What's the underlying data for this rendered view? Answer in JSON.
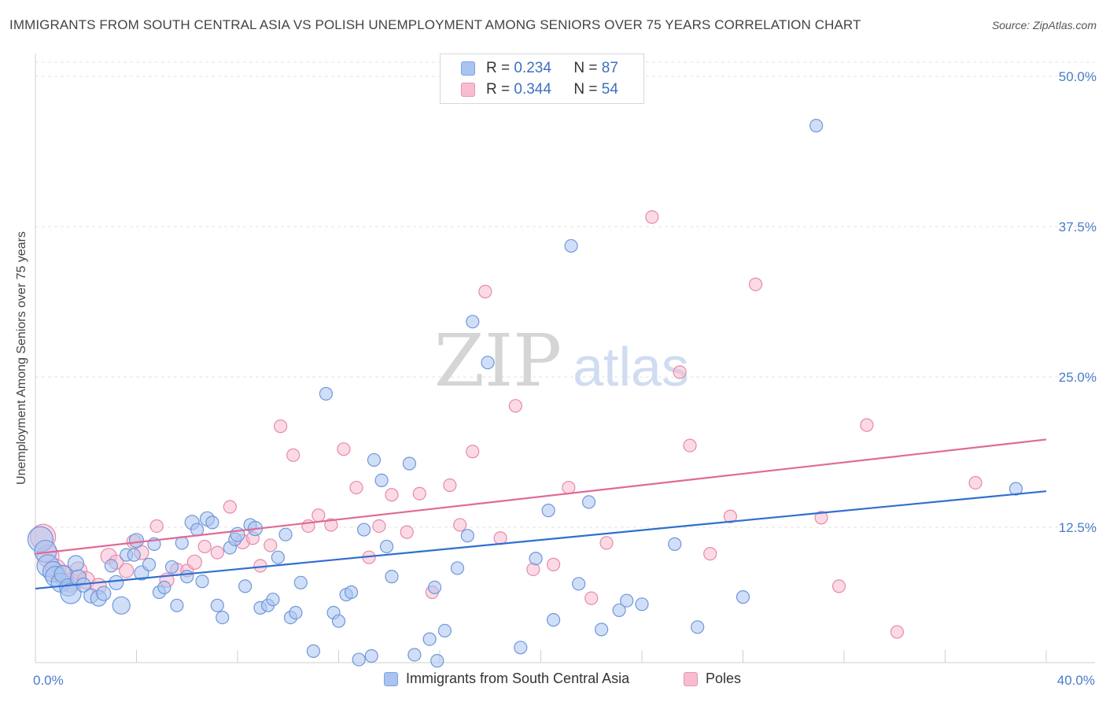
{
  "header": {
    "title": "IMMIGRANTS FROM SOUTH CENTRAL ASIA VS POLISH UNEMPLOYMENT AMONG SENIORS OVER 75 YEARS CORRELATION CHART",
    "source": "Source: ZipAtlas.com"
  },
  "watermark": {
    "zip": "ZIP",
    "atlas": "atlas"
  },
  "legend": {
    "r_label": "R =",
    "n_label": "N =",
    "entries": [
      {
        "r": "0.234",
        "n": "87",
        "color": "#a9c4f0",
        "border": "#7ea3e0"
      },
      {
        "r": "0.344",
        "n": "54",
        "color": "#f7bcd0",
        "border": "#e993b0"
      }
    ]
  },
  "colors": {
    "blue_fill": "#a9c4f0",
    "blue_stroke": "#6f97da",
    "blue_line": "#2f6fd0",
    "pink_fill": "#f7bcd0",
    "pink_stroke": "#e58aab",
    "pink_line": "#e06a96",
    "tick_text": "#4a7cc9"
  },
  "chart_data": {
    "type": "scatter",
    "xlabel": "",
    "ylabel": "Unemployment Among Seniors over 75 years",
    "xlim": [
      0,
      40
    ],
    "ylim": [
      0,
      50
    ],
    "x_tick_labels": [
      {
        "value": 0,
        "label": "0.0%"
      },
      {
        "value": 40,
        "label": "40.0%"
      }
    ],
    "y_tick_labels": [
      {
        "value": 12.5,
        "label": "12.5%"
      },
      {
        "value": 25,
        "label": "25.0%"
      },
      {
        "value": 37.5,
        "label": "37.5%"
      },
      {
        "value": 50,
        "label": "50.0%"
      }
    ],
    "grid": true,
    "legend_position": "top-center",
    "series": [
      {
        "name": "Immigrants from South Central Asia",
        "r": 0.234,
        "n": 87,
        "trend": {
          "x": [
            0,
            40
          ],
          "y": [
            7.4,
            15.5
          ]
        },
        "points": [
          {
            "x": 0.2,
            "y": 11.5,
            "s": 16
          },
          {
            "x": 0.4,
            "y": 10.5,
            "s": 14
          },
          {
            "x": 0.5,
            "y": 9.3,
            "s": 14
          },
          {
            "x": 0.7,
            "y": 8.8,
            "s": 13
          },
          {
            "x": 0.8,
            "y": 8.4,
            "s": 13
          },
          {
            "x": 1.0,
            "y": 7.9,
            "s": 12
          },
          {
            "x": 1.1,
            "y": 8.6,
            "s": 11
          },
          {
            "x": 1.3,
            "y": 7.5,
            "s": 11
          },
          {
            "x": 1.4,
            "y": 7.0,
            "s": 13
          },
          {
            "x": 1.6,
            "y": 9.5,
            "s": 10
          },
          {
            "x": 1.7,
            "y": 8.3,
            "s": 10
          },
          {
            "x": 1.9,
            "y": 7.7,
            "s": 9
          },
          {
            "x": 2.2,
            "y": 6.8,
            "s": 9
          },
          {
            "x": 2.5,
            "y": 6.6,
            "s": 10
          },
          {
            "x": 2.7,
            "y": 7.0,
            "s": 9
          },
          {
            "x": 3.0,
            "y": 9.3,
            "s": 8
          },
          {
            "x": 3.2,
            "y": 7.9,
            "s": 9
          },
          {
            "x": 3.4,
            "y": 6.0,
            "s": 11
          },
          {
            "x": 3.6,
            "y": 10.2,
            "s": 8
          },
          {
            "x": 3.9,
            "y": 10.2,
            "s": 8
          },
          {
            "x": 4.0,
            "y": 11.4,
            "s": 9
          },
          {
            "x": 4.2,
            "y": 8.7,
            "s": 9
          },
          {
            "x": 4.5,
            "y": 9.4,
            "s": 8
          },
          {
            "x": 4.7,
            "y": 11.1,
            "s": 8
          },
          {
            "x": 4.9,
            "y": 7.1,
            "s": 8
          },
          {
            "x": 5.1,
            "y": 7.5,
            "s": 8
          },
          {
            "x": 5.4,
            "y": 9.2,
            "s": 8
          },
          {
            "x": 5.6,
            "y": 6.0,
            "s": 8
          },
          {
            "x": 5.8,
            "y": 11.2,
            "s": 8
          },
          {
            "x": 6.0,
            "y": 8.4,
            "s": 8
          },
          {
            "x": 6.2,
            "y": 12.9,
            "s": 9
          },
          {
            "x": 6.4,
            "y": 12.3,
            "s": 8
          },
          {
            "x": 6.6,
            "y": 8.0,
            "s": 8
          },
          {
            "x": 6.8,
            "y": 13.2,
            "s": 9
          },
          {
            "x": 7.0,
            "y": 12.9,
            "s": 8
          },
          {
            "x": 7.2,
            "y": 6.0,
            "s": 8
          },
          {
            "x": 7.4,
            "y": 5.0,
            "s": 8
          },
          {
            "x": 7.7,
            "y": 10.8,
            "s": 8
          },
          {
            "x": 7.9,
            "y": 11.5,
            "s": 8
          },
          {
            "x": 8.0,
            "y": 11.9,
            "s": 9
          },
          {
            "x": 8.3,
            "y": 7.6,
            "s": 8
          },
          {
            "x": 8.5,
            "y": 12.7,
            "s": 8
          },
          {
            "x": 8.7,
            "y": 12.4,
            "s": 9
          },
          {
            "x": 8.9,
            "y": 5.8,
            "s": 8
          },
          {
            "x": 9.2,
            "y": 6.0,
            "s": 8
          },
          {
            "x": 9.4,
            "y": 6.5,
            "s": 8
          },
          {
            "x": 9.6,
            "y": 10.0,
            "s": 8
          },
          {
            "x": 9.9,
            "y": 11.9,
            "s": 8
          },
          {
            "x": 10.1,
            "y": 5.0,
            "s": 8
          },
          {
            "x": 10.3,
            "y": 5.4,
            "s": 8
          },
          {
            "x": 10.5,
            "y": 7.9,
            "s": 8
          },
          {
            "x": 11.0,
            "y": 2.2,
            "s": 8
          },
          {
            "x": 11.5,
            "y": 23.6,
            "s": 8
          },
          {
            "x": 11.8,
            "y": 5.4,
            "s": 8
          },
          {
            "x": 12.0,
            "y": 4.7,
            "s": 8
          },
          {
            "x": 12.3,
            "y": 6.9,
            "s": 8
          },
          {
            "x": 12.5,
            "y": 7.1,
            "s": 8
          },
          {
            "x": 12.8,
            "y": 1.5,
            "s": 8
          },
          {
            "x": 13.0,
            "y": 12.3,
            "s": 8
          },
          {
            "x": 13.3,
            "y": 1.8,
            "s": 8
          },
          {
            "x": 13.4,
            "y": 18.1,
            "s": 8
          },
          {
            "x": 13.7,
            "y": 16.4,
            "s": 8
          },
          {
            "x": 13.9,
            "y": 10.9,
            "s": 8
          },
          {
            "x": 14.1,
            "y": 8.4,
            "s": 8
          },
          {
            "x": 14.8,
            "y": 17.8,
            "s": 8
          },
          {
            "x": 15.0,
            "y": 1.9,
            "s": 8
          },
          {
            "x": 15.6,
            "y": 3.2,
            "s": 8
          },
          {
            "x": 15.8,
            "y": 7.5,
            "s": 8
          },
          {
            "x": 15.9,
            "y": 1.4,
            "s": 8
          },
          {
            "x": 16.2,
            "y": 3.9,
            "s": 8
          },
          {
            "x": 16.7,
            "y": 9.1,
            "s": 8
          },
          {
            "x": 17.1,
            "y": 11.8,
            "s": 8
          },
          {
            "x": 17.3,
            "y": 29.6,
            "s": 8
          },
          {
            "x": 17.9,
            "y": 26.2,
            "s": 8
          },
          {
            "x": 19.2,
            "y": 2.5,
            "s": 8
          },
          {
            "x": 19.8,
            "y": 9.9,
            "s": 8
          },
          {
            "x": 20.3,
            "y": 13.9,
            "s": 8
          },
          {
            "x": 20.5,
            "y": 4.8,
            "s": 8
          },
          {
            "x": 21.2,
            "y": 35.9,
            "s": 8
          },
          {
            "x": 21.5,
            "y": 7.8,
            "s": 8
          },
          {
            "x": 21.9,
            "y": 14.6,
            "s": 8
          },
          {
            "x": 22.4,
            "y": 4.0,
            "s": 8
          },
          {
            "x": 23.1,
            "y": 5.6,
            "s": 8
          },
          {
            "x": 23.4,
            "y": 6.4,
            "s": 8
          },
          {
            "x": 24.0,
            "y": 6.1,
            "s": 8
          },
          {
            "x": 25.3,
            "y": 11.1,
            "s": 8
          },
          {
            "x": 26.2,
            "y": 4.2,
            "s": 8
          },
          {
            "x": 28.0,
            "y": 6.7,
            "s": 8
          },
          {
            "x": 30.9,
            "y": 45.9,
            "s": 8
          },
          {
            "x": 38.8,
            "y": 15.7,
            "s": 8
          }
        ]
      },
      {
        "name": "Poles",
        "r": 0.344,
        "n": 54,
        "trend": {
          "x": [
            0,
            40
          ],
          "y": [
            10.3,
            19.8
          ]
        },
        "points": [
          {
            "x": 0.3,
            "y": 11.7,
            "s": 16
          },
          {
            "x": 0.5,
            "y": 10.1,
            "s": 14
          },
          {
            "x": 0.8,
            "y": 9.0,
            "s": 13
          },
          {
            "x": 1.1,
            "y": 8.5,
            "s": 13
          },
          {
            "x": 1.4,
            "y": 7.9,
            "s": 12
          },
          {
            "x": 1.7,
            "y": 8.9,
            "s": 11
          },
          {
            "x": 2.0,
            "y": 8.1,
            "s": 11
          },
          {
            "x": 2.5,
            "y": 7.6,
            "s": 10
          },
          {
            "x": 2.9,
            "y": 10.1,
            "s": 10
          },
          {
            "x": 3.2,
            "y": 9.6,
            "s": 9
          },
          {
            "x": 3.6,
            "y": 8.9,
            "s": 9
          },
          {
            "x": 3.9,
            "y": 11.3,
            "s": 9
          },
          {
            "x": 4.2,
            "y": 10.4,
            "s": 9
          },
          {
            "x": 4.8,
            "y": 12.6,
            "s": 8
          },
          {
            "x": 5.2,
            "y": 8.1,
            "s": 9
          },
          {
            "x": 5.6,
            "y": 9.0,
            "s": 8
          },
          {
            "x": 6.0,
            "y": 8.9,
            "s": 8
          },
          {
            "x": 6.3,
            "y": 9.6,
            "s": 9
          },
          {
            "x": 6.7,
            "y": 10.9,
            "s": 8
          },
          {
            "x": 7.2,
            "y": 10.4,
            "s": 8
          },
          {
            "x": 7.7,
            "y": 14.2,
            "s": 8
          },
          {
            "x": 8.2,
            "y": 11.3,
            "s": 9
          },
          {
            "x": 8.6,
            "y": 11.6,
            "s": 8
          },
          {
            "x": 8.9,
            "y": 9.3,
            "s": 8
          },
          {
            "x": 9.3,
            "y": 11.0,
            "s": 8
          },
          {
            "x": 9.7,
            "y": 20.9,
            "s": 8
          },
          {
            "x": 10.2,
            "y": 18.5,
            "s": 8
          },
          {
            "x": 10.8,
            "y": 12.6,
            "s": 8
          },
          {
            "x": 11.2,
            "y": 13.5,
            "s": 8
          },
          {
            "x": 11.7,
            "y": 12.7,
            "s": 8
          },
          {
            "x": 12.2,
            "y": 19.0,
            "s": 8
          },
          {
            "x": 12.7,
            "y": 15.8,
            "s": 8
          },
          {
            "x": 13.2,
            "y": 10.0,
            "s": 8
          },
          {
            "x": 13.6,
            "y": 12.6,
            "s": 8
          },
          {
            "x": 14.1,
            "y": 15.2,
            "s": 8
          },
          {
            "x": 14.7,
            "y": 12.1,
            "s": 8
          },
          {
            "x": 15.2,
            "y": 15.3,
            "s": 8
          },
          {
            "x": 15.7,
            "y": 7.1,
            "s": 8
          },
          {
            "x": 16.4,
            "y": 16.0,
            "s": 8
          },
          {
            "x": 16.8,
            "y": 12.7,
            "s": 8
          },
          {
            "x": 17.3,
            "y": 18.8,
            "s": 8
          },
          {
            "x": 17.8,
            "y": 32.1,
            "s": 8
          },
          {
            "x": 18.4,
            "y": 11.6,
            "s": 8
          },
          {
            "x": 19.0,
            "y": 22.6,
            "s": 8
          },
          {
            "x": 19.7,
            "y": 9.0,
            "s": 8
          },
          {
            "x": 20.5,
            "y": 9.4,
            "s": 8
          },
          {
            "x": 21.1,
            "y": 15.8,
            "s": 8
          },
          {
            "x": 22.0,
            "y": 6.6,
            "s": 8
          },
          {
            "x": 22.6,
            "y": 11.2,
            "s": 8
          },
          {
            "x": 24.4,
            "y": 38.3,
            "s": 8
          },
          {
            "x": 25.5,
            "y": 25.4,
            "s": 8
          },
          {
            "x": 25.9,
            "y": 19.3,
            "s": 8
          },
          {
            "x": 26.7,
            "y": 10.3,
            "s": 8
          },
          {
            "x": 27.5,
            "y": 13.4,
            "s": 8
          },
          {
            "x": 28.5,
            "y": 32.7,
            "s": 8
          },
          {
            "x": 31.1,
            "y": 13.3,
            "s": 8
          },
          {
            "x": 31.8,
            "y": 7.6,
            "s": 8
          },
          {
            "x": 32.9,
            "y": 21.0,
            "s": 8
          },
          {
            "x": 34.1,
            "y": 3.8,
            "s": 8
          },
          {
            "x": 37.2,
            "y": 16.2,
            "s": 8
          }
        ]
      }
    ]
  }
}
